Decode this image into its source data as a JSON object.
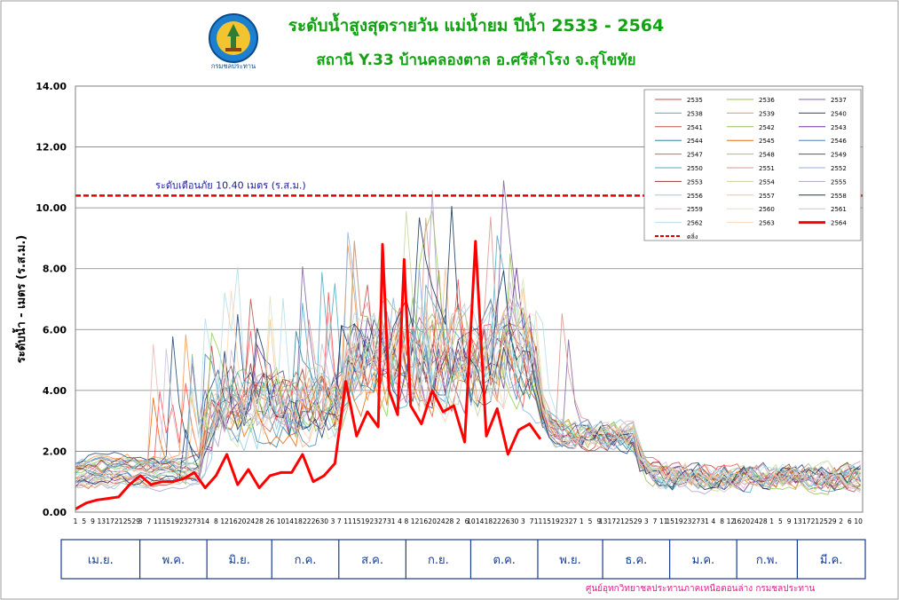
{
  "header": {
    "title": "ระดับน้ำสูงสุดรายวัน แม่น้ำยม ปีน้ำ 2533 - 2564",
    "subtitle": "สถานี Y.33 บ้านคลองตาล อ.ศรีสำโรง จ.สุโขทัย",
    "logo_text": "กรมชลประทาน"
  },
  "footer": {
    "credit": "ศูนย์อุทกวิทยาชลประทานภาคเหนือตอนล่าง  กรมชลประทาน"
  },
  "colors": {
    "title": "#12a312",
    "highlight": "#ff0000",
    "warning": "#dd0000",
    "credit": "#e0208a"
  },
  "chart_data": {
    "type": "line",
    "ylabel": "ระดับน้ำ  -  เมตร (ร.ส.ม.)",
    "ylim": [
      0,
      14
    ],
    "yticks": [
      "0.00",
      "2.00",
      "4.00",
      "6.00",
      "8.00",
      "10.00",
      "12.00",
      "14.00"
    ],
    "grid": true,
    "xtick_labels": [
      "1",
      "5",
      "9",
      "13",
      "17",
      "21",
      "25",
      "29",
      "3",
      "7",
      "11",
      "15",
      "19",
      "23",
      "27",
      "31",
      "4",
      "8",
      "12",
      "16",
      "20",
      "24",
      "28",
      "2",
      "6",
      "10",
      "14",
      "18",
      "22",
      "26",
      "30",
      "3",
      "7",
      "11",
      "15",
      "19",
      "23",
      "27",
      "31",
      "4",
      "8",
      "12",
      "16",
      "20",
      "24",
      "28",
      "2",
      "6",
      "10",
      "14",
      "18",
      "22",
      "26",
      "30",
      "3",
      "7",
      "11",
      "15",
      "19",
      "23",
      "27",
      "1",
      "5",
      "9",
      "13",
      "17",
      "21",
      "25",
      "29",
      "3",
      "7",
      "11",
      "15",
      "19",
      "23",
      "27",
      "31",
      "4",
      "8",
      "12",
      "16",
      "20",
      "24",
      "28",
      "1",
      "5",
      "9",
      "13",
      "17",
      "21",
      "25",
      "29",
      "2",
      "6",
      "10",
      "14",
      "18",
      "22",
      "26",
      "30",
      "3",
      "7",
      "11",
      "15",
      "19",
      "23",
      "27",
      "31"
    ],
    "months": [
      "เม.ย.",
      "พ.ค.",
      "มิ.ย.",
      "ก.ค.",
      "ส.ค.",
      "ก.ย.",
      "ต.ค.",
      "พ.ย.",
      "ธ.ค.",
      "ม.ค.",
      "ก.พ.",
      "มี.ค."
    ],
    "month_days": [
      30,
      31,
      30,
      31,
      31,
      30,
      31,
      30,
      31,
      31,
      28,
      31
    ],
    "warning": {
      "value": 10.4,
      "label": "ระดับเตือนภัย 10.40 เมตร (ร.ส.ม.)",
      "legend_label": "ตลิ่ง"
    },
    "legend_position": "top-right",
    "years": [
      "2535",
      "2536",
      "2537",
      "2538",
      "2539",
      "2540",
      "2541",
      "2542",
      "2543",
      "2544",
      "2545",
      "2546",
      "2547",
      "2548",
      "2549",
      "2550",
      "2551",
      "2552",
      "2553",
      "2554",
      "2555",
      "2556",
      "2557",
      "2558",
      "2559",
      "2560",
      "2561",
      "2562",
      "2563",
      "2564"
    ],
    "year_colors": [
      "#c0504d",
      "#9bbb59",
      "#8064a2",
      "#4bacc6",
      "#f79646",
      "#1f497d",
      "#c0504d",
      "#9bbb59",
      "#7030a0",
      "#31859c",
      "#e46c0a",
      "#4f81bd",
      "#ff5050",
      "#92d050",
      "#604a7b",
      "#4bacc6",
      "#d99694",
      "#8db3e2",
      "#953735",
      "#c3d69b",
      "#b3a2c7",
      "#93cddd",
      "#fac090",
      "#17375e",
      "#e6b9b8",
      "#d7e4bd",
      "#ccc1da",
      "#b7dde8",
      "#fcd5b4",
      "#ff0000"
    ],
    "highlight_series": {
      "name": "2564",
      "x_day": [
        1,
        6,
        11,
        16,
        21,
        26,
        31,
        36,
        41,
        46,
        51,
        56,
        61,
        66,
        71,
        76,
        81,
        86,
        91,
        96,
        101,
        106,
        111,
        116,
        121,
        126,
        131,
        136,
        141,
        143,
        146,
        150,
        153,
        156,
        161,
        166,
        171,
        176,
        181,
        186,
        191,
        196,
        201,
        206,
        211,
        216,
        221,
        226,
        231
      ],
      "y": [
        0.1,
        0.3,
        0.4,
        0.45,
        0.5,
        0.9,
        1.2,
        0.9,
        1.0,
        1.0,
        1.1,
        1.3,
        0.8,
        1.2,
        1.9,
        0.9,
        1.4,
        0.8,
        1.2,
        1.3,
        1.3,
        1.9,
        1.0,
        1.2,
        1.6,
        4.3,
        2.5,
        3.3,
        2.8,
        8.8,
        4.0,
        3.2,
        8.3,
        3.5,
        2.9,
        4.0,
        3.3,
        3.5,
        2.3,
        8.9,
        2.5,
        3.4,
        1.9,
        2.7,
        2.9,
        2.4,
        null,
        null,
        null
      ]
    }
  }
}
